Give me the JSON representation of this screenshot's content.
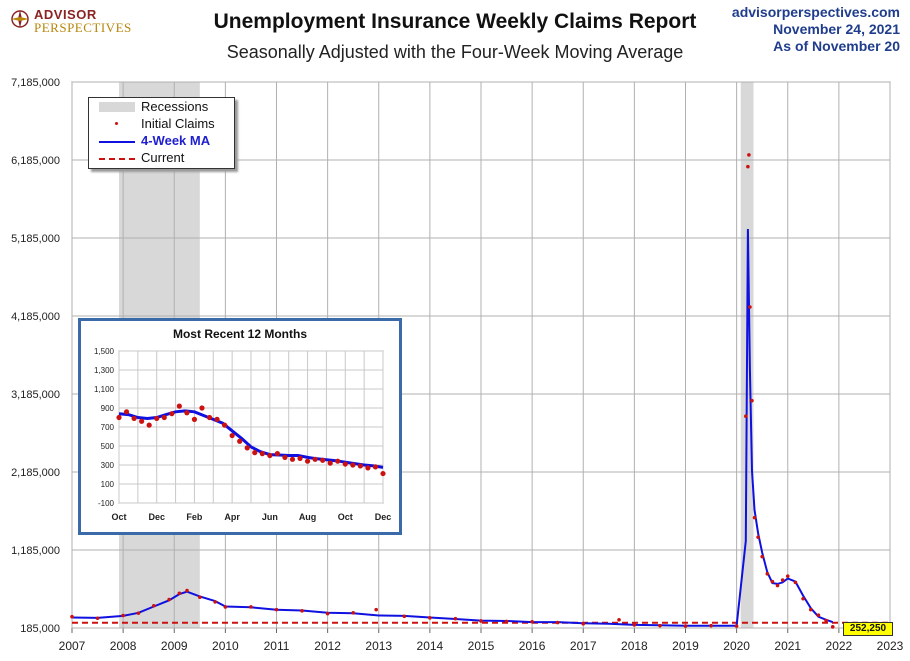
{
  "header": {
    "title": "Unemployment Insurance Weekly Claims Report",
    "subtitle": "Seasonally Adjusted with the Four-Week Moving Average",
    "site": "advisorperspectives.com",
    "date": "November 24, 2021",
    "as_of": "As of November 20"
  },
  "logo": {
    "line1": "ADVISOR",
    "line2": "PERSPECTIVES"
  },
  "legend": {
    "recessions": "Recessions",
    "initial_claims": "Initial Claims",
    "ma": "4-Week MA",
    "current": "Current"
  },
  "current_badge": "252,250",
  "colors": {
    "ma": "#1010e0",
    "claims": "#cc1111",
    "recession": "#d8d8d8",
    "inset_border": "#3a6aa8",
    "badge": "#ffff00"
  },
  "chart_data": [
    {
      "type": "line",
      "title": "Unemployment Insurance Weekly Claims Report",
      "ylim": [
        185000,
        7185000
      ],
      "yticks": [
        "185,000",
        "1,185,000",
        "2,185,000",
        "3,185,000",
        "4,185,000",
        "5,185,000",
        "6,185,000",
        "7,185,000"
      ],
      "ytick_values": [
        185000,
        1185000,
        2185000,
        3185000,
        4185000,
        5185000,
        6185000,
        7185000
      ],
      "xlim": [
        2007,
        2023
      ],
      "xticks": [
        "2007",
        "2008",
        "2009",
        "2010",
        "2011",
        "2012",
        "2013",
        "2014",
        "2015",
        "2016",
        "2017",
        "2018",
        "2019",
        "2020",
        "2021",
        "2022",
        "2023"
      ],
      "grid": true,
      "legend_position": "top-left",
      "recessions": [
        [
          2007.92,
          2009.5
        ],
        [
          2020.08,
          2020.33
        ]
      ],
      "current": 252250,
      "series": [
        {
          "name": "4-Week MA",
          "x": [
            2007.0,
            2007.5,
            2008.0,
            2008.3,
            2008.6,
            2008.9,
            2009.1,
            2009.25,
            2009.5,
            2009.8,
            2010.0,
            2010.5,
            2011.0,
            2011.5,
            2012.0,
            2012.5,
            2013.0,
            2013.5,
            2014.0,
            2014.5,
            2015.0,
            2015.5,
            2016.0,
            2016.5,
            2017.0,
            2017.5,
            2018.0,
            2018.5,
            2019.0,
            2019.5,
            2020.0,
            2020.18,
            2020.22,
            2020.26,
            2020.3,
            2020.35,
            2020.42,
            2020.5,
            2020.6,
            2020.7,
            2020.8,
            2020.9,
            2021.0,
            2021.15,
            2021.3,
            2021.45,
            2021.6,
            2021.75,
            2021.88
          ],
          "values": [
            320000,
            315000,
            340000,
            380000,
            460000,
            540000,
            620000,
            650000,
            590000,
            530000,
            460000,
            450000,
            420000,
            410000,
            380000,
            375000,
            345000,
            340000,
            320000,
            300000,
            280000,
            275000,
            260000,
            260000,
            245000,
            240000,
            225000,
            220000,
            215000,
            215000,
            215000,
            1300000,
            5300000,
            3500000,
            2200000,
            1700000,
            1400000,
            1150000,
            900000,
            760000,
            750000,
            770000,
            820000,
            780000,
            600000,
            440000,
            330000,
            290000,
            260000
          ]
        },
        {
          "name": "Initial Claims",
          "x": [
            2007.0,
            2007.5,
            2008.0,
            2008.3,
            2008.6,
            2008.9,
            2009.1,
            2009.25,
            2009.5,
            2009.8,
            2010.0,
            2010.5,
            2011.0,
            2011.5,
            2012.0,
            2012.5,
            2012.95,
            2013.5,
            2014.0,
            2014.5,
            2015.0,
            2015.5,
            2016.0,
            2016.5,
            2017.0,
            2017.7,
            2018.0,
            2018.5,
            2019.0,
            2019.5,
            2020.0,
            2020.18,
            2020.22,
            2020.24,
            2020.26,
            2020.3,
            2020.35,
            2020.42,
            2020.5,
            2020.6,
            2020.7,
            2020.8,
            2020.9,
            2021.0,
            2021.15,
            2021.3,
            2021.45,
            2021.6,
            2021.75,
            2021.88
          ],
          "values": [
            330000,
            310000,
            345000,
            375000,
            470000,
            550000,
            630000,
            665000,
            580000,
            520000,
            455000,
            455000,
            420000,
            405000,
            370000,
            380000,
            420000,
            335000,
            315000,
            305000,
            275000,
            270000,
            265000,
            255000,
            240000,
            290000,
            225000,
            215000,
            210000,
            215000,
            210000,
            2900000,
            6100000,
            6250000,
            4300000,
            3100000,
            1600000,
            1350000,
            1100000,
            880000,
            780000,
            730000,
            800000,
            850000,
            770000,
            560000,
            420000,
            350000,
            280000,
            200000
          ]
        },
        {
          "name": "Current",
          "values": [
            252250
          ]
        }
      ]
    },
    {
      "type": "line",
      "title": "Most Recent 12 Months",
      "ylim": [
        -100,
        1500
      ],
      "yticks": [
        "-100",
        "100",
        "300",
        "500",
        "700",
        "900",
        "1,100",
        "1,300",
        "1,500"
      ],
      "ytick_values": [
        -100,
        100,
        300,
        500,
        700,
        900,
        1100,
        1300,
        1500
      ],
      "xticks": [
        "Oct",
        "Dec",
        "Feb",
        "Apr",
        "Jun",
        "Aug",
        "Oct",
        "Dec"
      ],
      "grid": true,
      "series": [
        {
          "name": "4-Week MA",
          "x": [
            0,
            0.5,
            1,
            1.5,
            2,
            2.5,
            3,
            3.5,
            4,
            4.5,
            5,
            5.5,
            6,
            6.5,
            7,
            7.5,
            8,
            8.5,
            9,
            9.5,
            10,
            10.5,
            11,
            11.5,
            12,
            12.5,
            13,
            13.5,
            14
          ],
          "values": [
            840,
            830,
            800,
            790,
            800,
            830,
            860,
            870,
            860,
            820,
            780,
            740,
            660,
            580,
            490,
            440,
            410,
            405,
            400,
            400,
            380,
            365,
            355,
            345,
            330,
            315,
            300,
            290,
            275
          ]
        },
        {
          "name": "Initial Claims",
          "x": [
            0,
            0.4,
            0.8,
            1.2,
            1.6,
            2.0,
            2.4,
            2.8,
            3.2,
            3.6,
            4.0,
            4.4,
            4.8,
            5.2,
            5.6,
            6.0,
            6.4,
            6.8,
            7.2,
            7.6,
            8.0,
            8.4,
            8.8,
            9.2,
            9.6,
            10.0,
            10.4,
            10.8,
            11.2,
            11.6,
            12.0,
            12.4,
            12.8,
            13.2,
            13.6,
            14.0
          ],
          "values": [
            800,
            860,
            790,
            760,
            720,
            790,
            800,
            840,
            920,
            850,
            780,
            900,
            800,
            780,
            720,
            610,
            550,
            480,
            430,
            420,
            400,
            420,
            380,
            360,
            370,
            340,
            360,
            350,
            320,
            340,
            310,
            300,
            290,
            270,
            280,
            210
          ]
        }
      ]
    }
  ]
}
